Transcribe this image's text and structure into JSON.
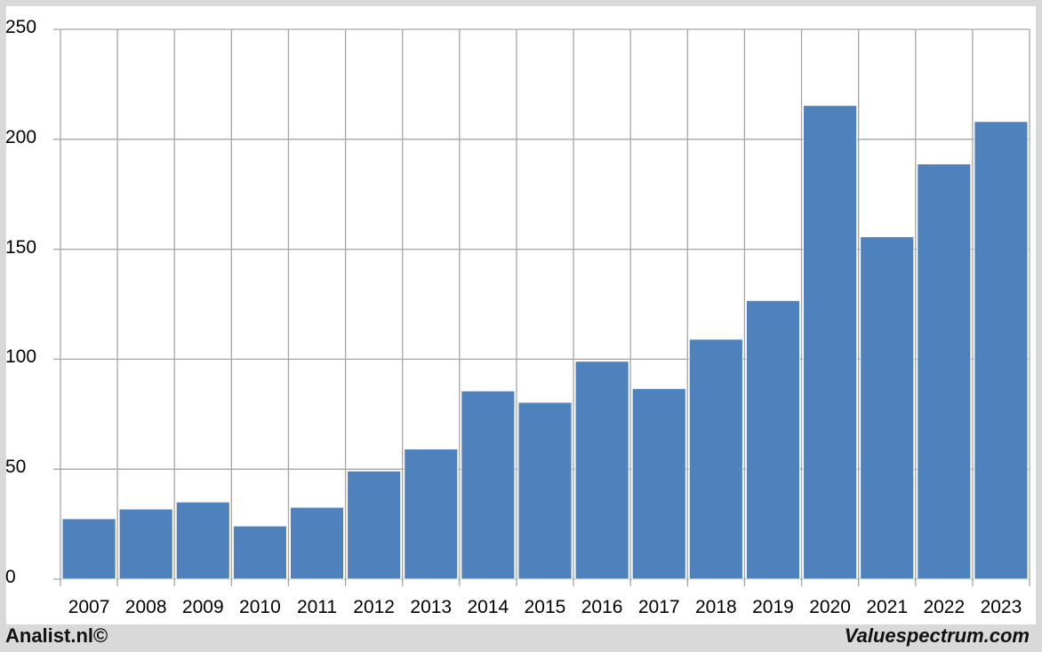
{
  "chart_data": {
    "type": "bar",
    "title": "",
    "xlabel": "",
    "ylabel": "",
    "categories": [
      "2007",
      "2008",
      "2009",
      "2010",
      "2011",
      "2012",
      "2013",
      "2014",
      "2015",
      "2016",
      "2017",
      "2018",
      "2019",
      "2020",
      "2021",
      "2022",
      "2023"
    ],
    "values": [
      27.5,
      31.9,
      35.1,
      24.2,
      32.7,
      49.2,
      59.2,
      85.6,
      80.4,
      99.1,
      86.7,
      109.1,
      126.7,
      215.4,
      155.7,
      188.8,
      208.1
    ],
    "ylim": [
      0,
      250
    ],
    "yticks": [
      0,
      50,
      100,
      150,
      200,
      250
    ],
    "ytick_labels": [
      "0",
      "50",
      "100",
      "150",
      "200",
      "250"
    ],
    "grid": true,
    "legend": null,
    "bar_color": "#4f81bd"
  },
  "footer": {
    "left": "Analist.nl©",
    "right": "Valuespectrum.com"
  },
  "colors": {
    "background": "#d9d9d9",
    "panel": "#ffffff",
    "grid": "#a6a6a6",
    "bar": "#4f81bd"
  }
}
